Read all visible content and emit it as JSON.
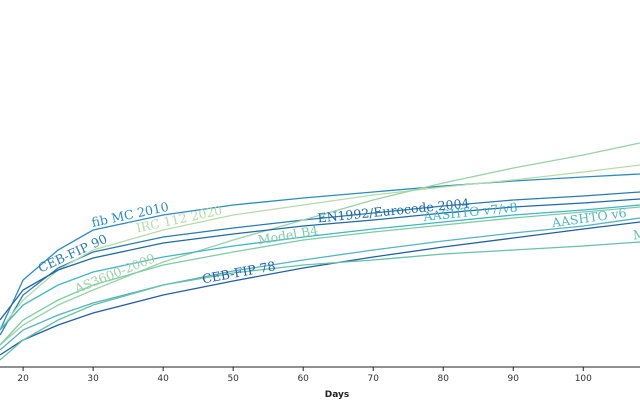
{
  "chart_data": {
    "type": "line",
    "x_label": "Days",
    "x": [
      16.7,
      20,
      25,
      30,
      40,
      50,
      60,
      70,
      80,
      90,
      100,
      108.1
    ],
    "xlim": [
      16.7,
      108.1
    ],
    "xticks": [
      20,
      30,
      40,
      50,
      60,
      70,
      80,
      90,
      100
    ],
    "ylim": [
      0,
      367
    ],
    "grid": false,
    "series": [
      {
        "name": "fib MC 2010",
        "color": "#2b8cbe",
        "values": [
          37,
          87,
          117,
          137,
          152,
          162,
          169,
          175,
          181,
          186,
          190,
          193
        ]
      },
      {
        "name": "CEB-FIP 90",
        "color": "#2a7bb0",
        "values": [
          32,
          72,
          99,
          115,
          130,
          139,
          147,
          154,
          161,
          167,
          171,
          175
        ]
      },
      {
        "name": "IRC 112 2020",
        "color": "#b5dca8",
        "values": [
          37,
          67,
          97,
          117,
          137,
          152,
          162,
          172,
          180,
          187,
          195,
          202
        ]
      },
      {
        "name": "AS3600-2009",
        "color": "#9ad2a6",
        "values": [
          22,
          42,
          62,
          77,
          105,
          127,
          147,
          167,
          184,
          199,
          212,
          224
        ]
      },
      {
        "name": "Model B4",
        "color": "#7fcca4",
        "values": [
          22,
          47,
          67,
          82,
          102,
          115,
          127,
          135,
          142,
          149,
          155,
          160
        ]
      },
      {
        "name": "EN1992/Eurocode 2004",
        "color": "#1f6aa5",
        "values": [
          47,
          77,
          97,
          109,
          124,
          133,
          141,
          147,
          154,
          160,
          164,
          168
        ]
      },
      {
        "name": "AASHTO v7/v8",
        "color": "#41b6c4",
        "values": [
          37,
          62,
          82,
          95,
          110,
          121,
          130,
          138,
          145,
          152,
          157,
          162
        ]
      },
      {
        "name": "CEB-FIP 78",
        "color": "#225ea8",
        "values": [
          12,
          27,
          42,
          54,
          72,
          86,
          99,
          110,
          120,
          129,
          138,
          145
        ]
      },
      {
        "name": "AASHTO v6",
        "color": "#55b3c2",
        "values": [
          17,
          37,
          52,
          64,
          82,
          96,
          107,
          117,
          126,
          134,
          141,
          149
        ]
      },
      {
        "name": "Model",
        "color": "#66c2a4",
        "values": [
          7,
          27,
          47,
          62,
          82,
          94,
          102,
          107,
          113,
          117,
          121,
          125
        ]
      }
    ]
  }
}
